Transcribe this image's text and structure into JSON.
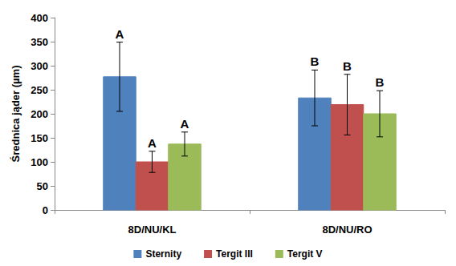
{
  "chart_data": {
    "type": "bar",
    "categories": [
      "8D/NU/KL",
      "8D/NU/RO"
    ],
    "series": [
      {
        "name": "Sternity",
        "color": "#4f81bd",
        "values": [
          277,
          233
        ],
        "errors": [
          72,
          58
        ],
        "letters": [
          "A",
          "B"
        ]
      },
      {
        "name": "Tergit III",
        "color": "#c0504d",
        "values": [
          100,
          219
        ],
        "errors": [
          22,
          63
        ],
        "letters": [
          "A",
          "B"
        ]
      },
      {
        "name": "Tergit V",
        "color": "#9bbb59",
        "values": [
          137,
          200
        ],
        "errors": [
          25,
          48
        ],
        "letters": [
          "A",
          "B"
        ]
      }
    ],
    "ylabel": "Średnica jąder (µm)",
    "ylim": [
      0,
      400
    ],
    "yticks": [
      0,
      50,
      100,
      150,
      200,
      250,
      300,
      350,
      400
    ],
    "grid": false,
    "legend": "bottom"
  }
}
